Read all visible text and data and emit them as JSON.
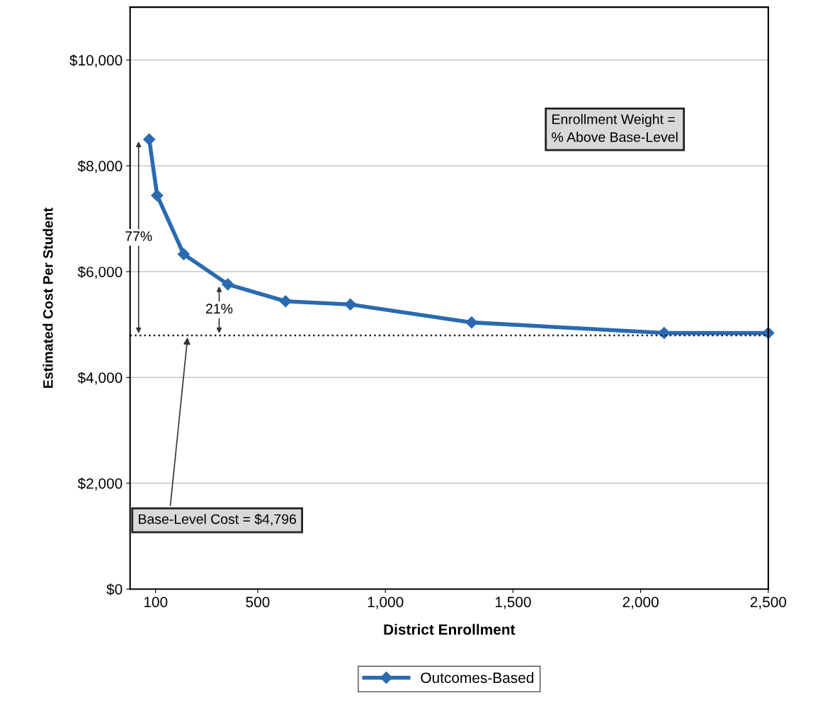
{
  "chart_data": {
    "type": "line",
    "xlabel": "District Enrollment",
    "ylabel": "Estimated Cost Per Student",
    "x": [
      75,
      106,
      210,
      383,
      609,
      863,
      1338,
      2092,
      2500
    ],
    "series": [
      {
        "name": "Outcomes-Based",
        "color": "#2a6ab0",
        "values": [
          8500,
          7440,
          6330,
          5760,
          5440,
          5380,
          5040,
          4840,
          4840
        ]
      }
    ],
    "xlim": [
      0,
      2500
    ],
    "xticks": [
      100,
      500,
      {
        "value": 1000,
        "label": "1,000"
      },
      {
        "value": 1500,
        "label": "1,500"
      },
      {
        "value": 2000,
        "label": "2,000"
      },
      {
        "value": 2500,
        "label": "2,500"
      }
    ],
    "ylim": [
      0,
      11000
    ],
    "yticks": [
      {
        "value": 0,
        "label": "$0"
      },
      {
        "value": 2000,
        "label": "$2,000"
      },
      {
        "value": 4000,
        "label": "$4,000"
      },
      {
        "value": 6000,
        "label": "$6,000"
      },
      {
        "value": 8000,
        "label": "$8,000"
      },
      {
        "value": 10000,
        "label": "$10,000"
      }
    ],
    "ref_lines": [
      {
        "axis": "y",
        "value": 4796,
        "color": "#222222",
        "line_style": "dotted"
      }
    ],
    "annotations": [
      "77%",
      {
        "text": "21%",
        "x": 349,
        "y": 5760
      },
      {
        "text": "Base-Level Cost = $4,796",
        "x": 226,
        "y": 4796
      },
      "Enrollment Weight =\n% Above Base-Level"
    ],
    "grid": "y",
    "legend": "bottom",
    "marker": "diamond",
    "line_style": "solid"
  }
}
